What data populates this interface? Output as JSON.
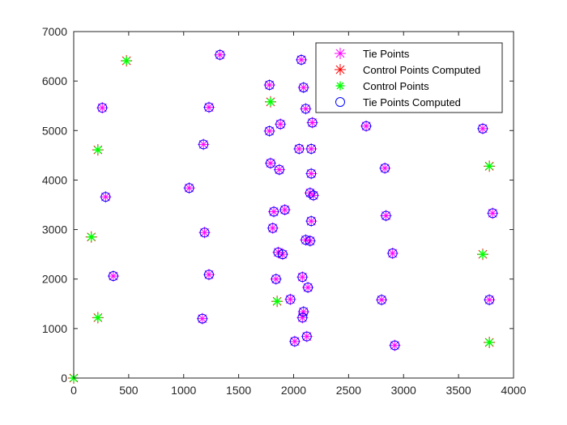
{
  "chart_data": {
    "type": "scatter",
    "title": "",
    "xlabel": "",
    "ylabel": "",
    "xlim": [
      0,
      4000
    ],
    "ylim": [
      0,
      7000
    ],
    "xticks": [
      0,
      500,
      1000,
      1500,
      2000,
      2500,
      3000,
      3500,
      4000
    ],
    "yticks": [
      0,
      1000,
      2000,
      3000,
      4000,
      5000,
      6000,
      7000
    ],
    "grid": false,
    "legend_position": "top-right",
    "series": [
      {
        "name": "Tie Points",
        "marker": "asterisk",
        "color": "#ff00ff",
        "points": [
          [
            1330,
            6530
          ],
          [
            2070,
            6430
          ],
          [
            260,
            5460
          ],
          [
            1230,
            5470
          ],
          [
            1780,
            5920
          ],
          [
            2090,
            5870
          ],
          [
            2110,
            5440
          ],
          [
            1180,
            4720
          ],
          [
            1780,
            4990
          ],
          [
            1880,
            5130
          ],
          [
            2170,
            5160
          ],
          [
            2660,
            5090
          ],
          [
            3720,
            5040
          ],
          [
            2050,
            4630
          ],
          [
            2160,
            4630
          ],
          [
            1790,
            4340
          ],
          [
            1870,
            4210
          ],
          [
            2160,
            4130
          ],
          [
            2830,
            4240
          ],
          [
            1050,
            3840
          ],
          [
            290,
            3660
          ],
          [
            2150,
            3740
          ],
          [
            2180,
            3690
          ],
          [
            1920,
            3400
          ],
          [
            1820,
            3360
          ],
          [
            1810,
            3030
          ],
          [
            1190,
            2940
          ],
          [
            2160,
            3170
          ],
          [
            2840,
            3280
          ],
          [
            3810,
            3330
          ],
          [
            1860,
            2540
          ],
          [
            1900,
            2500
          ],
          [
            2110,
            2790
          ],
          [
            2150,
            2770
          ],
          [
            2900,
            2520
          ],
          [
            360,
            2060
          ],
          [
            1230,
            2090
          ],
          [
            1840,
            2000
          ],
          [
            2080,
            2040
          ],
          [
            2130,
            1830
          ],
          [
            1970,
            1590
          ],
          [
            2090,
            1340
          ],
          [
            2080,
            1220
          ],
          [
            1170,
            1200
          ],
          [
            2800,
            1580
          ],
          [
            3780,
            1580
          ],
          [
            2010,
            740
          ],
          [
            2120,
            840
          ],
          [
            2920,
            660
          ]
        ]
      },
      {
        "name": "Control Points Computed",
        "marker": "asterisk",
        "color": "#ff0000",
        "points": [
          [
            480,
            6410
          ],
          [
            1790,
            5580
          ],
          [
            220,
            4610
          ],
          [
            3780,
            4280
          ],
          [
            160,
            2850
          ],
          [
            3720,
            2500
          ],
          [
            1850,
            1550
          ],
          [
            220,
            1220
          ],
          [
            3780,
            720
          ],
          [
            0,
            0
          ]
        ]
      },
      {
        "name": "Control Points",
        "marker": "star",
        "color": "#00ff00",
        "points": [
          [
            480,
            6410
          ],
          [
            1790,
            5580
          ],
          [
            220,
            4610
          ],
          [
            3780,
            4280
          ],
          [
            160,
            2850
          ],
          [
            3720,
            2500
          ],
          [
            1850,
            1550
          ],
          [
            220,
            1220
          ],
          [
            3780,
            720
          ],
          [
            0,
            0
          ]
        ]
      },
      {
        "name": "Tie Points Computed",
        "marker": "circle",
        "color": "#0000ff",
        "points": [
          [
            1330,
            6530
          ],
          [
            2070,
            6430
          ],
          [
            260,
            5460
          ],
          [
            1230,
            5470
          ],
          [
            1780,
            5920
          ],
          [
            2090,
            5870
          ],
          [
            2110,
            5440
          ],
          [
            1180,
            4720
          ],
          [
            1780,
            4990
          ],
          [
            1880,
            5130
          ],
          [
            2170,
            5160
          ],
          [
            2660,
            5090
          ],
          [
            3720,
            5040
          ],
          [
            2050,
            4630
          ],
          [
            2160,
            4630
          ],
          [
            1790,
            4340
          ],
          [
            1870,
            4210
          ],
          [
            2160,
            4130
          ],
          [
            2830,
            4240
          ],
          [
            1050,
            3840
          ],
          [
            290,
            3660
          ],
          [
            2150,
            3740
          ],
          [
            2180,
            3690
          ],
          [
            1920,
            3400
          ],
          [
            1820,
            3360
          ],
          [
            1810,
            3030
          ],
          [
            1190,
            2940
          ],
          [
            2160,
            3170
          ],
          [
            2840,
            3280
          ],
          [
            3810,
            3330
          ],
          [
            1860,
            2540
          ],
          [
            1900,
            2500
          ],
          [
            2110,
            2790
          ],
          [
            2150,
            2770
          ],
          [
            2900,
            2520
          ],
          [
            360,
            2060
          ],
          [
            1230,
            2090
          ],
          [
            1840,
            2000
          ],
          [
            2080,
            2040
          ],
          [
            2130,
            1830
          ],
          [
            1970,
            1590
          ],
          [
            2090,
            1340
          ],
          [
            2080,
            1220
          ],
          [
            1170,
            1200
          ],
          [
            2800,
            1580
          ],
          [
            3780,
            1580
          ],
          [
            2010,
            740
          ],
          [
            2120,
            840
          ],
          [
            2920,
            660
          ]
        ]
      }
    ]
  }
}
